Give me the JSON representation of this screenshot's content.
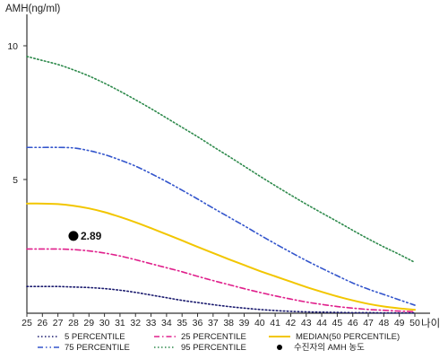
{
  "chart_data": {
    "type": "line",
    "title": "",
    "ylabel": "AMH(ng/ml)",
    "xlabel": "나이",
    "xlim": [
      25,
      50
    ],
    "ylim": [
      0,
      11
    ],
    "yticks": [
      5,
      10
    ],
    "x": [
      25,
      26,
      27,
      28,
      29,
      30,
      31,
      32,
      33,
      34,
      35,
      36,
      37,
      38,
      39,
      40,
      41,
      42,
      43,
      44,
      45,
      46,
      47,
      48,
      49,
      50
    ],
    "series": [
      {
        "name": "5 PERCENTILE",
        "color": "#1a1a6e",
        "dash": "dotted",
        "values": [
          1.0,
          1.0,
          1.0,
          0.98,
          0.96,
          0.92,
          0.86,
          0.78,
          0.68,
          0.58,
          0.48,
          0.4,
          0.32,
          0.25,
          0.19,
          0.14,
          0.1,
          0.07,
          0.05,
          0.04,
          0.03,
          0.02,
          0.02,
          0.01,
          0.01,
          0.01
        ]
      },
      {
        "name": "25 PERCENTILE",
        "color": "#e0208c",
        "dash": "dashdot",
        "values": [
          2.4,
          2.4,
          2.4,
          2.38,
          2.33,
          2.25,
          2.14,
          2.0,
          1.85,
          1.7,
          1.55,
          1.38,
          1.22,
          1.07,
          0.92,
          0.78,
          0.65,
          0.53,
          0.42,
          0.33,
          0.25,
          0.19,
          0.14,
          0.11,
          0.08,
          0.06
        ]
      },
      {
        "name": "MEDIAN(50 PERCENTILE)",
        "color": "#f2c600",
        "dash": "solid",
        "values": [
          4.1,
          4.1,
          4.08,
          4.02,
          3.92,
          3.78,
          3.6,
          3.4,
          3.18,
          2.95,
          2.72,
          2.48,
          2.25,
          2.02,
          1.8,
          1.58,
          1.38,
          1.18,
          0.98,
          0.8,
          0.63,
          0.48,
          0.35,
          0.25,
          0.18,
          0.13
        ]
      },
      {
        "name": "75 PERCENTILE",
        "color": "#3355cc",
        "dash": "dashdotdot",
        "values": [
          6.2,
          6.2,
          6.2,
          6.18,
          6.08,
          5.93,
          5.73,
          5.5,
          5.22,
          4.92,
          4.6,
          4.27,
          3.93,
          3.6,
          3.27,
          2.93,
          2.6,
          2.28,
          1.97,
          1.68,
          1.4,
          1.13,
          0.9,
          0.7,
          0.5,
          0.3
        ]
      },
      {
        "name": "95 PERCENTILE",
        "color": "#2e8a4c",
        "dash": "dotted",
        "values": [
          9.6,
          9.45,
          9.3,
          9.1,
          8.87,
          8.6,
          8.3,
          7.98,
          7.65,
          7.3,
          6.95,
          6.6,
          6.23,
          5.87,
          5.5,
          5.13,
          4.77,
          4.42,
          4.08,
          3.75,
          3.43,
          3.1,
          2.78,
          2.48,
          2.2,
          1.9
        ]
      }
    ],
    "points": [
      {
        "name": "수진자의 AMH 농도",
        "x": 28,
        "y": 2.89,
        "label": "2.89",
        "color": "#000000"
      }
    ],
    "legend": {
      "position": "bottom",
      "items": [
        {
          "series": "5 PERCENTILE",
          "label": "5 PERCENTILE",
          "symbol": "line"
        },
        {
          "series": "25 PERCENTILE",
          "label": "25 PERCENTILE",
          "symbol": "line"
        },
        {
          "series": "MEDIAN(50 PERCENTILE)",
          "label": "MEDIAN(50 PERCENTILE)",
          "symbol": "line"
        },
        {
          "series": "75 PERCENTILE",
          "label": "75 PERCENTILE",
          "symbol": "line"
        },
        {
          "series": "95 PERCENTILE",
          "label": "95 PERCENTILE",
          "symbol": "line"
        },
        {
          "series": "수진자의 AMH 농도",
          "label": "수진자의 AMH 농도",
          "symbol": "dot"
        }
      ]
    },
    "grid": false
  }
}
